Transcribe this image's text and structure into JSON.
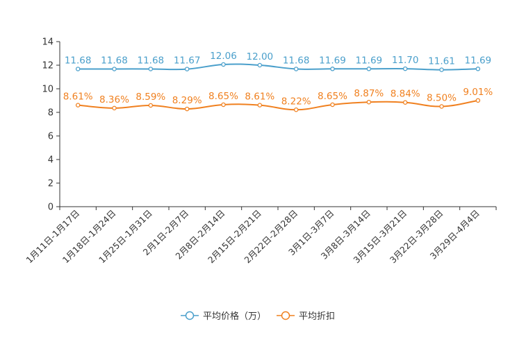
{
  "chart_data": {
    "type": "line",
    "categories": [
      "1月11日-1月17日",
      "1月18日-1月24日",
      "1月25日-1月31日",
      "2月1日-2月7日",
      "2月8日-2月14日",
      "2月15日-2月21日",
      "2月22日-2月28日",
      "3月1日-3月7日",
      "3月8日-3月14日",
      "3月15日-3月21日",
      "3月22日-3月28日",
      "3月29日-4月4日"
    ],
    "series": [
      {
        "name": "平均价格（万）",
        "color": "#4a9fcb",
        "values": [
          11.68,
          11.68,
          11.68,
          11.67,
          12.06,
          12.0,
          11.68,
          11.69,
          11.69,
          11.7,
          11.61,
          11.69
        ],
        "labels": [
          "11.68",
          "11.68",
          "11.68",
          "11.67",
          "12.06",
          "12.00",
          "11.68",
          "11.69",
          "11.69",
          "11.70",
          "11.61",
          "11.69"
        ]
      },
      {
        "name": "平均折扣",
        "color": "#f0801f",
        "values": [
          8.61,
          8.36,
          8.59,
          8.29,
          8.65,
          8.61,
          8.22,
          8.65,
          8.87,
          8.84,
          8.5,
          9.01
        ],
        "labels": [
          "8.61%",
          "8.36%",
          "8.59%",
          "8.29%",
          "8.65%",
          "8.61%",
          "8.22%",
          "8.65%",
          "8.87%",
          "8.84%",
          "8.50%",
          "9.01%"
        ]
      }
    ],
    "ylim": [
      0,
      14
    ],
    "yticks": [
      0,
      2,
      4,
      6,
      8,
      10,
      12,
      14
    ],
    "title": "",
    "xlabel": "",
    "ylabel": "",
    "legend_position": "bottom-center",
    "grid": false
  }
}
